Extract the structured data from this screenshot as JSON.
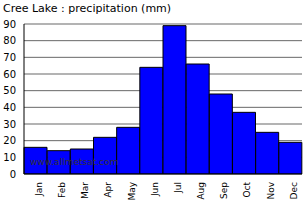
{
  "chart_data": {
    "type": "bar",
    "title": "Cree Lake : precipitation (mm)",
    "categories": [
      "Jan",
      "Feb",
      "Mar",
      "Apr",
      "May",
      "Jun",
      "Jul",
      "Aug",
      "Sep",
      "Oct",
      "Nov",
      "Dec"
    ],
    "values": [
      16,
      14,
      15,
      22,
      28,
      64,
      89,
      66,
      48,
      37,
      25,
      19
    ],
    "color": "#0000ff",
    "ylim": [
      0,
      90
    ],
    "yticks": [
      0,
      10,
      20,
      30,
      40,
      50,
      60,
      70,
      80,
      90
    ],
    "grid": true,
    "annotations": [
      "www.allmetsat.com"
    ]
  }
}
